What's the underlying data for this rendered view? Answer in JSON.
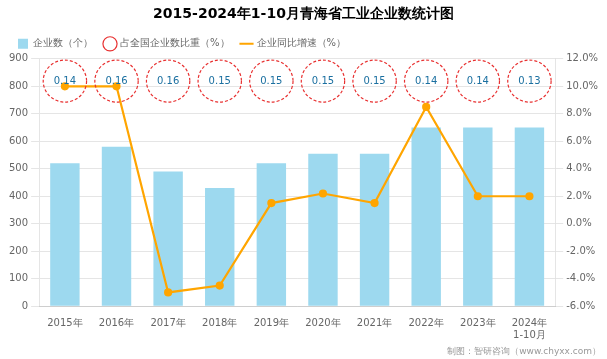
{
  "chart_data": {
    "type": "bar",
    "title": "2015-2024年1-10月青海省工业企业数统计图",
    "categories": [
      "2015年",
      "2016年",
      "2017年",
      "2018年",
      "2019年",
      "2020年",
      "2021年",
      "2022年",
      "2023年",
      "2024年\n1-10月"
    ],
    "series": [
      {
        "name": "企业数（个）",
        "type": "bar",
        "color": "#9DD9EF",
        "values": [
          520,
          580,
          490,
          430,
          520,
          555,
          555,
          650,
          650,
          650
        ]
      },
      {
        "name": "占全国企业数比重（%）",
        "type": "text",
        "color": "#E83030",
        "marker": "circle",
        "line_style": "dashed",
        "data_labels": true,
        "values": [
          0.14,
          0.16,
          0.16,
          0.15,
          0.15,
          0.15,
          0.15,
          0.14,
          0.14,
          0.13
        ]
      },
      {
        "name": "企业同比增速（%）",
        "type": "line",
        "color": "#FFA500",
        "marker": "circle",
        "axis": "y2",
        "values": [
          10.0,
          10.0,
          -5.0,
          -4.5,
          1.5,
          2.2,
          1.5,
          8.5,
          2.0,
          2.0
        ]
      }
    ],
    "ylim": [
      0,
      900
    ],
    "yticks": [
      0,
      100,
      200,
      300,
      400,
      500,
      600,
      700,
      800,
      900
    ],
    "y2lim": [
      -6.0,
      12.0
    ],
    "y2ticks": [
      {
        "value": -6.0,
        "label": "-6.0%"
      },
      {
        "value": -4.0,
        "label": "-4.0%"
      },
      {
        "value": -2.0,
        "label": "-2.0%"
      },
      {
        "value": 0.0,
        "label": "0.0%"
      },
      {
        "value": 2.0,
        "label": "2.0%"
      },
      {
        "value": 4.0,
        "label": "4.0%"
      },
      {
        "value": 6.0,
        "label": "6.0%"
      },
      {
        "value": 8.0,
        "label": "8.0%"
      },
      {
        "value": 10.0,
        "label": "10.0%"
      },
      {
        "value": 12.0,
        "label": "12.0%"
      }
    ],
    "grid": true,
    "legend": "top",
    "annotations": [
      "制图：智研咨询（www.chyxx.com）"
    ]
  }
}
